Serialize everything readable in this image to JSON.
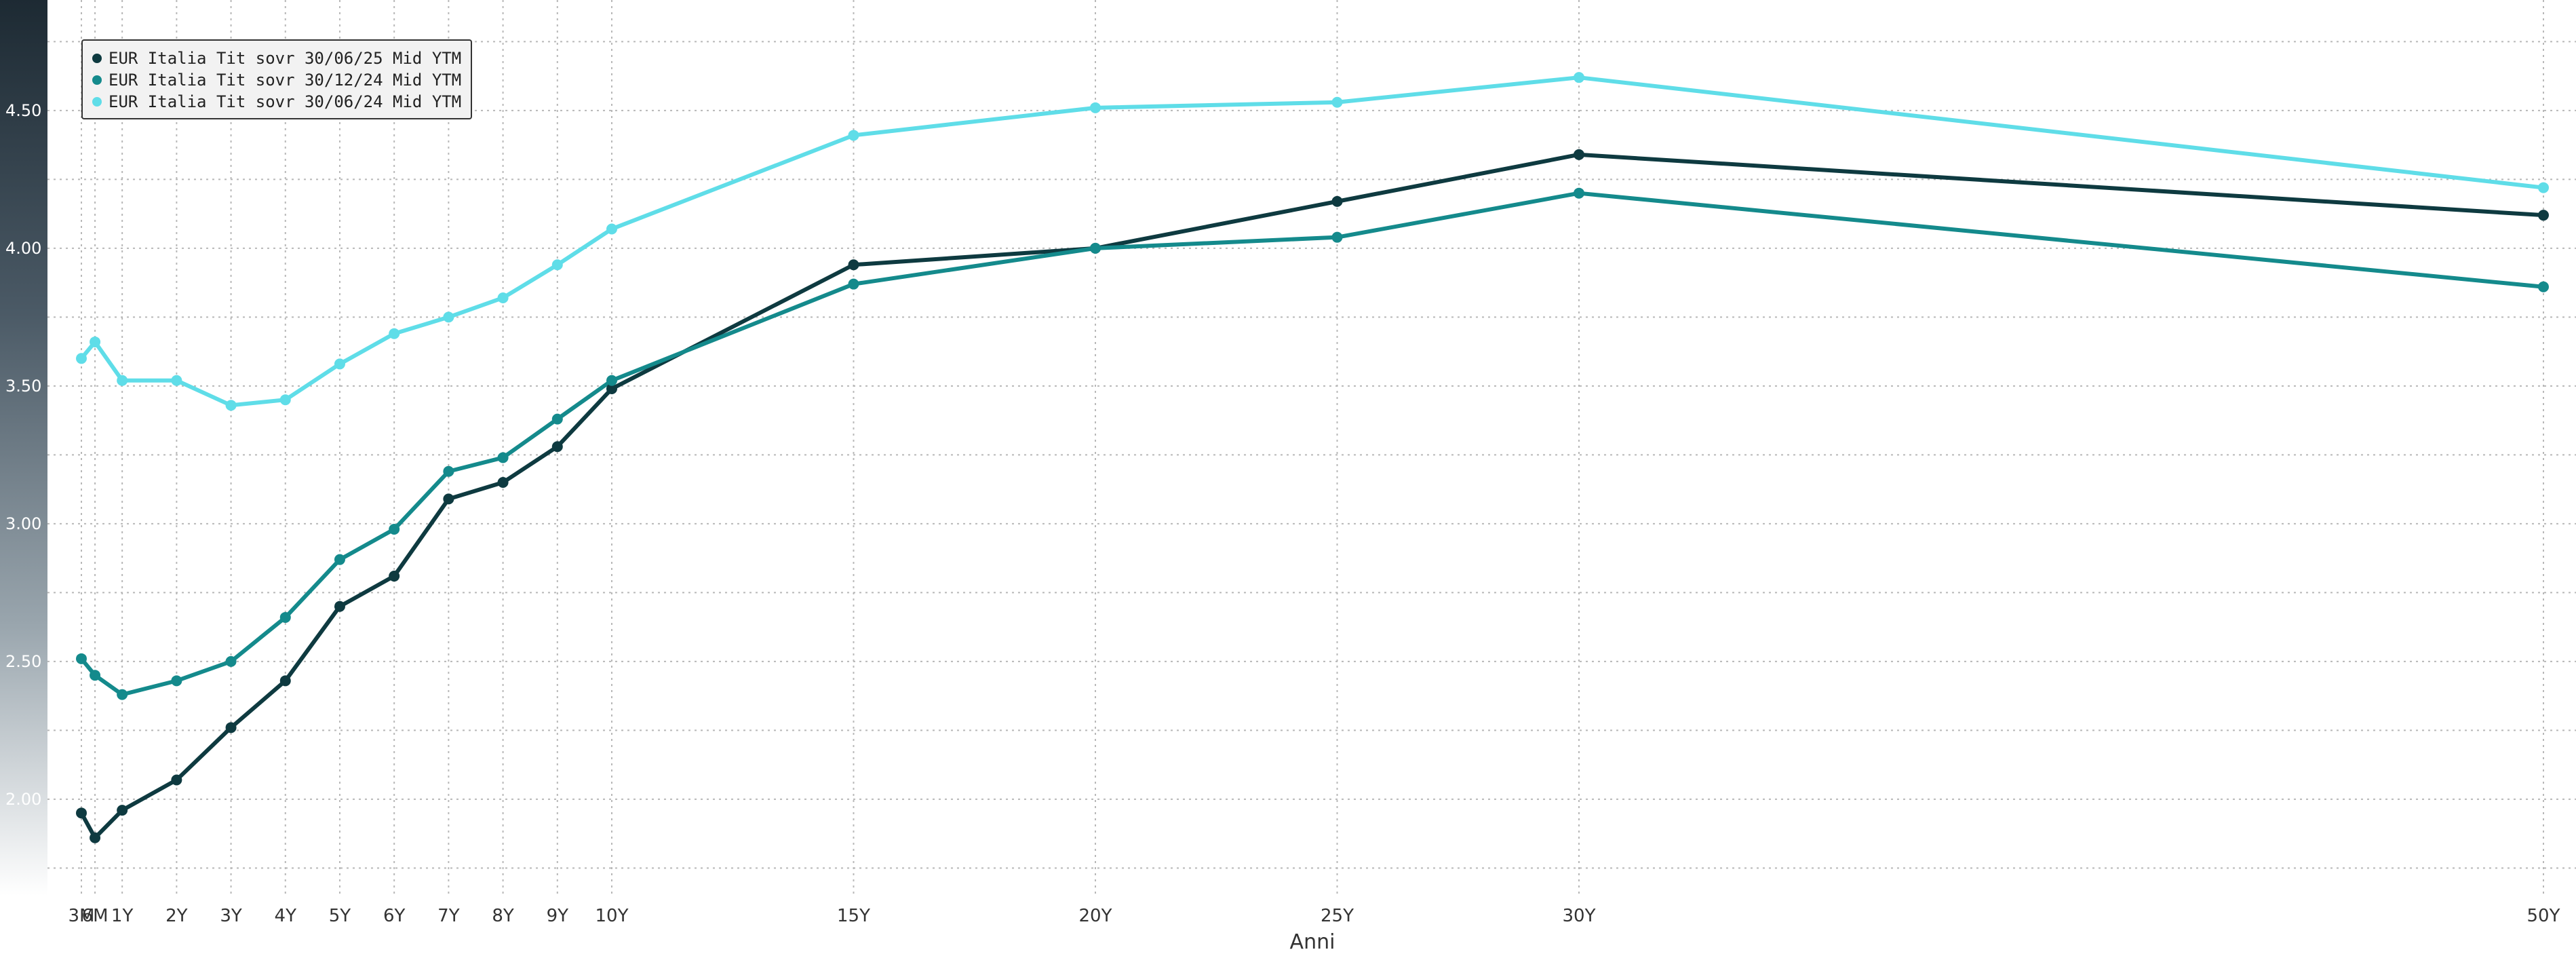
{
  "chart_data": {
    "type": "line",
    "xlabel": "Anni",
    "ylabel": "",
    "categories": [
      "3M",
      "6M",
      "1Y",
      "2Y",
      "3Y",
      "4Y",
      "5Y",
      "6Y",
      "7Y",
      "8Y",
      "9Y",
      "10Y",
      "15Y",
      "20Y",
      "25Y",
      "30Y",
      "50Y"
    ],
    "category_years": [
      0.25,
      0.5,
      1,
      2,
      3,
      4,
      5,
      6,
      7,
      8,
      9,
      10,
      15,
      20,
      25,
      30,
      50
    ],
    "ylim": [
      1.65,
      4.75
    ],
    "yticks": [
      "2.00",
      "2.50",
      "3.00",
      "3.50",
      "4.00",
      "4.50"
    ],
    "grid": true,
    "legend_position": "top-left",
    "series": [
      {
        "name": "EUR Italia Tit sovr 30/06/25 Mid YTM",
        "color": "#0e3a40",
        "values": [
          1.95,
          1.86,
          1.96,
          2.07,
          2.26,
          2.43,
          2.7,
          2.81,
          3.09,
          3.15,
          3.28,
          3.49,
          3.94,
          4.0,
          4.17,
          4.34,
          4.12
        ]
      },
      {
        "name": "EUR Italia Tit sovr 30/12/24 Mid YTM",
        "color": "#148a8c",
        "values": [
          2.51,
          2.45,
          2.38,
          2.43,
          2.5,
          2.66,
          2.87,
          2.98,
          3.19,
          3.24,
          3.38,
          3.52,
          3.87,
          4.0,
          4.04,
          4.2,
          3.86
        ]
      },
      {
        "name": "EUR Italia Tit sovr 30/06/24 Mid YTM",
        "color": "#5fdde8",
        "values": [
          3.6,
          3.66,
          3.52,
          3.52,
          3.43,
          3.45,
          3.58,
          3.69,
          3.75,
          3.82,
          3.94,
          4.07,
          4.41,
          4.51,
          4.53,
          4.62,
          4.22
        ]
      }
    ]
  }
}
